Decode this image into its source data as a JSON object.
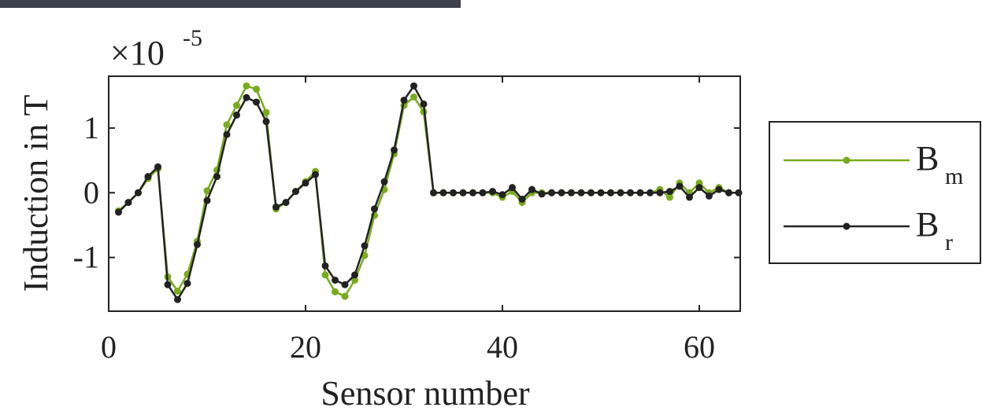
{
  "chart_data": {
    "type": "line",
    "x_label": "Sensor number",
    "y_label": "Induction in T",
    "y_exponent_base": "×10",
    "y_exponent": "-5",
    "x": [
      1,
      2,
      3,
      4,
      5,
      6,
      7,
      8,
      9,
      10,
      11,
      12,
      13,
      14,
      15,
      16,
      17,
      18,
      19,
      20,
      21,
      22,
      23,
      24,
      25,
      26,
      27,
      28,
      29,
      30,
      31,
      32,
      33,
      34,
      35,
      36,
      37,
      38,
      39,
      40,
      41,
      42,
      43,
      44,
      45,
      46,
      47,
      48,
      49,
      50,
      51,
      52,
      53,
      54,
      55,
      56,
      57,
      58,
      59,
      60,
      61,
      62,
      63,
      64
    ],
    "series": [
      {
        "name": "B",
        "name_sub": "m",
        "color": "#7aab1c",
        "values": [
          -0.28,
          -0.15,
          0.0,
          0.22,
          0.37,
          -1.3,
          -1.52,
          -1.26,
          -0.75,
          0.03,
          0.35,
          1.05,
          1.35,
          1.65,
          1.6,
          1.24,
          -0.25,
          -0.15,
          0.02,
          0.17,
          0.33,
          -1.27,
          -1.53,
          -1.6,
          -1.35,
          -0.97,
          -0.35,
          0.05,
          0.6,
          1.35,
          1.48,
          1.25,
          0,
          0,
          0,
          0,
          0,
          0,
          0,
          -0.07,
          0.02,
          -0.15,
          0,
          0,
          0,
          0,
          0,
          0,
          0,
          0,
          0,
          0,
          0,
          0,
          0,
          0.05,
          -0.07,
          0.15,
          0,
          0.15,
          0,
          0.08,
          0,
          0
        ]
      },
      {
        "name": "B",
        "name_sub": "r",
        "color": "#222222",
        "values": [
          -0.3,
          -0.15,
          0.0,
          0.25,
          0.4,
          -1.42,
          -1.65,
          -1.4,
          -0.8,
          -0.12,
          0.25,
          0.9,
          1.2,
          1.47,
          1.4,
          1.1,
          -0.22,
          -0.15,
          0.02,
          0.15,
          0.28,
          -1.13,
          -1.35,
          -1.42,
          -1.27,
          -0.82,
          -0.25,
          0.17,
          0.66,
          1.43,
          1.65,
          1.37,
          0,
          0,
          0,
          0,
          0,
          0,
          0.02,
          -0.03,
          0.08,
          -0.1,
          0.05,
          -0.02,
          0,
          0,
          0,
          0,
          0,
          0,
          0,
          0,
          0,
          0,
          0,
          0,
          0.02,
          0.1,
          -0.07,
          0.08,
          -0.05,
          0.05,
          0,
          0
        ]
      }
    ],
    "xlim": [
      0,
      64
    ],
    "xticks": [
      0,
      20,
      40,
      60
    ],
    "ylim": [
      -1.83,
      1.8
    ],
    "yticks": [
      -1,
      0,
      1
    ],
    "grid": false,
    "legend": "right"
  }
}
